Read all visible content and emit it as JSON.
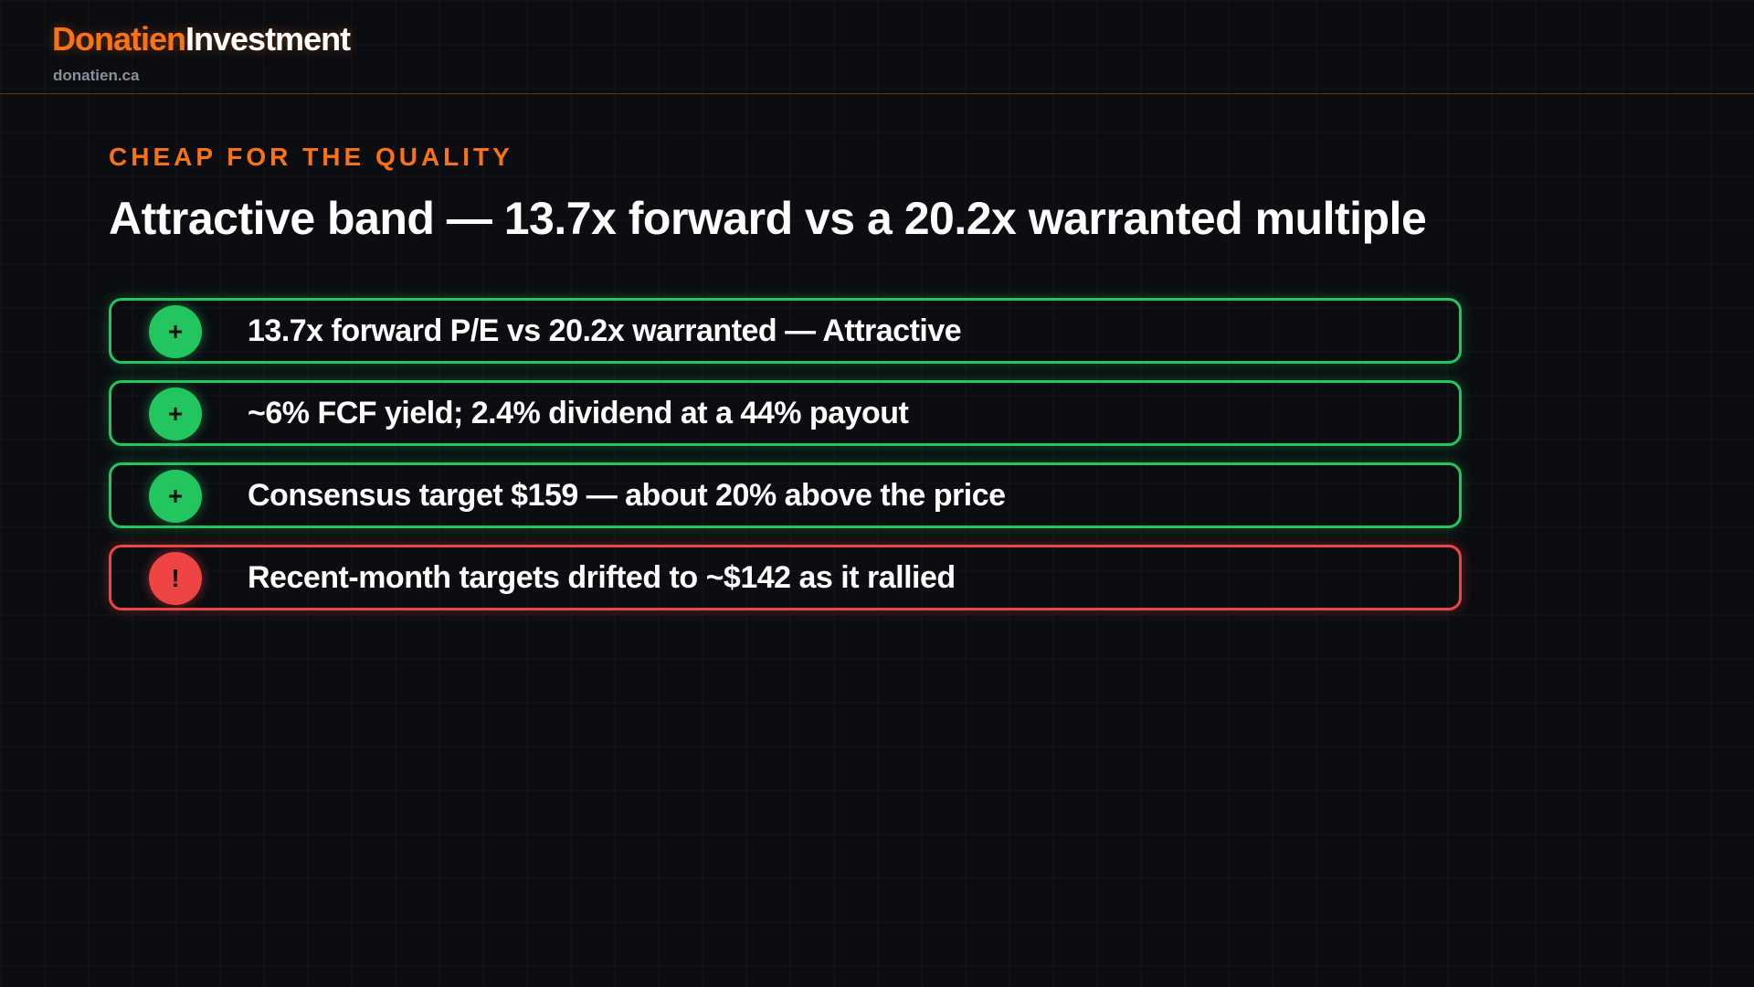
{
  "header": {
    "brand_primary": "Donatien",
    "brand_secondary": "Investment",
    "domain": "donatien.ca"
  },
  "slide": {
    "eyebrow": "CHEAP FOR THE QUALITY",
    "title": "Attractive band — 13.7x forward vs a 20.2x warranted multiple",
    "items": [
      {
        "icon": "+",
        "text": "13.7x forward P/E vs 20.2x warranted — Attractive",
        "color": "#22c55e"
      },
      {
        "icon": "+",
        "text": "~6% FCF yield; 2.4% dividend at a 44% payout",
        "color": "#22c55e"
      },
      {
        "icon": "+",
        "text": "Consensus target $159 — about 20% above the price",
        "color": "#22c55e"
      },
      {
        "icon": "!",
        "text": "Recent-month targets drifted to ~$142 as it rallied",
        "color": "#ef4444"
      }
    ]
  }
}
